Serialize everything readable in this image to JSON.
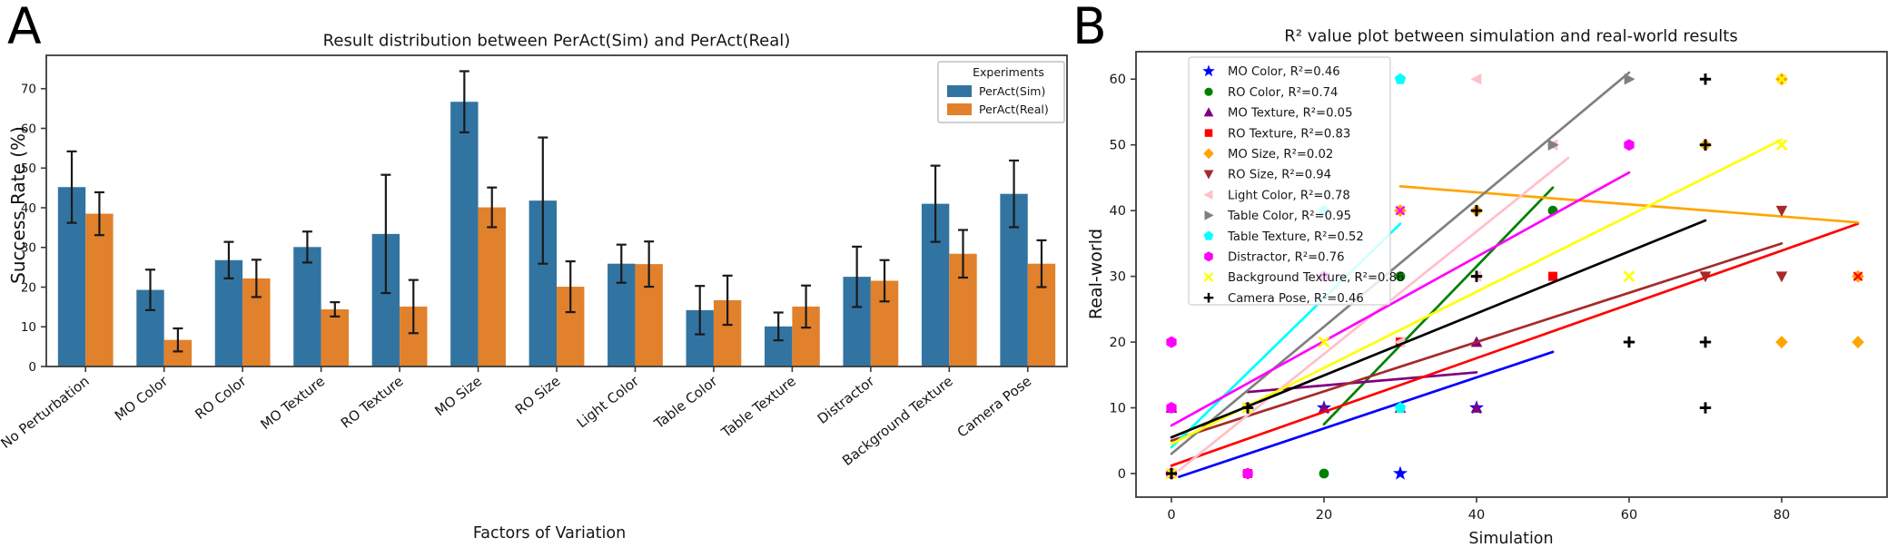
{
  "panel_a": {
    "letter": "A",
    "title": "Result distribution between PerAct(Sim) and PerAct(Real)",
    "xlabel": "Factors of Variation",
    "ylabel": "Success Rate (%)"
  },
  "panel_b": {
    "letter": "B",
    "title": "R² value plot between simulation and real-world results",
    "xlabel": "Simulation",
    "ylabel": "Real-world"
  },
  "chart_data": [
    {
      "type": "bar",
      "panel": "A",
      "title": "Result distribution between PerAct(Sim) and PerAct(Real)",
      "xlabel": "Factors of Variation",
      "ylabel": "Success Rate (%)",
      "ylim": [
        0,
        78.4
      ],
      "yticks": [
        0,
        10,
        20,
        30,
        40,
        50,
        60,
        70
      ],
      "grid": false,
      "legend_title": "Experiments",
      "legend_position": "upper right",
      "error_color": "#1a1a1a",
      "categories": [
        "No Perturbation",
        "MO Color",
        "RO Color",
        "MO Texture",
        "RO Texture",
        "MO Size",
        "RO Size",
        "Light Color",
        "Table Color",
        "Table Texture",
        "Distractor",
        "Background Texture",
        "Camera Pose"
      ],
      "series": [
        {
          "name": "PerAct(Sim)",
          "color": "#3274a1",
          "values": [
            45.2,
            19.3,
            26.8,
            30.1,
            33.4,
            66.7,
            41.8,
            25.9,
            14.2,
            10.1,
            22.6,
            41.0,
            43.5
          ],
          "errors": [
            9.0,
            5.1,
            4.6,
            3.9,
            14.9,
            7.7,
            15.9,
            4.8,
            6.1,
            3.5,
            7.6,
            9.6,
            8.4
          ]
        },
        {
          "name": "PerAct(Real)",
          "color": "#e1812c",
          "values": [
            38.5,
            6.7,
            22.2,
            14.4,
            15.1,
            40.1,
            20.1,
            25.8,
            16.7,
            15.1,
            21.6,
            28.4,
            25.9
          ],
          "errors": [
            5.4,
            2.9,
            4.7,
            1.8,
            6.7,
            5.0,
            6.4,
            5.7,
            6.2,
            5.3,
            5.2,
            6.0,
            5.9
          ]
        }
      ]
    },
    {
      "type": "scatter",
      "panel": "B",
      "title": "R² value plot between simulation and real-world results",
      "xlabel": "Simulation",
      "ylabel": "Real-world",
      "xlim": [
        -4.6,
        93.8
      ],
      "ylim": [
        -3.6,
        64.2
      ],
      "xticks": [
        0,
        20,
        40,
        60,
        80
      ],
      "yticks": [
        0,
        10,
        20,
        30,
        40,
        50,
        60
      ],
      "grid": false,
      "legend_position": "upper left",
      "series": [
        {
          "name": "MO Color",
          "legend_label": "MO Color, R²=0.46",
          "r2": 0.46,
          "color": "#0000ff",
          "marker": "star",
          "points": [
            [
              20,
              10
            ],
            [
              30,
              0
            ],
            [
              40,
              10
            ]
          ],
          "fit_line": [
            [
              1,
              -0.5
            ],
            [
              50,
              18.5
            ]
          ]
        },
        {
          "name": "RO Color",
          "legend_label": "RO Color, R²=0.74",
          "r2": 0.74,
          "color": "#008000",
          "marker": "circle",
          "points": [
            [
              20,
              0
            ],
            [
              30,
              30
            ],
            [
              50,
              40
            ]
          ],
          "fit_line": [
            [
              20,
              7.5
            ],
            [
              50,
              43.5
            ]
          ]
        },
        {
          "name": "MO Texture",
          "legend_label": "MO Texture, R²=0.05",
          "r2": 0.05,
          "color": "#800080",
          "marker": "triangle-up",
          "points": [
            [
              0,
              10
            ],
            [
              20,
              10
            ],
            [
              30,
              10
            ],
            [
              40,
              10
            ],
            [
              40,
              20
            ]
          ],
          "fit_line": [
            [
              10,
              12.4
            ],
            [
              40,
              15.4
            ]
          ]
        },
        {
          "name": "RO Texture",
          "legend_label": "RO Texture, R²=0.83",
          "r2": 0.83,
          "color": "#ff0000",
          "marker": "square",
          "points": [
            [
              0,
              0
            ],
            [
              10,
              0
            ],
            [
              30,
              20
            ],
            [
              50,
              30
            ]
          ],
          "fit_line": [
            [
              0,
              1.2
            ],
            [
              90,
              38
            ]
          ]
        },
        {
          "name": "MO Size",
          "legend_label": "MO Size, R²=0.02",
          "r2": 0.02,
          "color": "#ffa500",
          "marker": "diamond",
          "points": [
            [
              30,
              40
            ],
            [
              40,
              40
            ],
            [
              70,
              50
            ],
            [
              80,
              60
            ],
            [
              80,
              20
            ],
            [
              90,
              20
            ],
            [
              90,
              30
            ]
          ],
          "fit_line": [
            [
              30,
              43.7
            ],
            [
              90,
              38.2
            ]
          ]
        },
        {
          "name": "RO Size",
          "legend_label": "RO Size, R²=0.94",
          "r2": 0.94,
          "color": "#a52a2a",
          "marker": "triangle-down",
          "points": [
            [
              10,
              10
            ],
            [
              70,
              30
            ],
            [
              80,
              30
            ],
            [
              80,
              40
            ]
          ],
          "fit_line": [
            [
              0,
              5
            ],
            [
              80,
              35
            ]
          ]
        },
        {
          "name": "Light Color",
          "legend_label": "Light Color, R²=0.78",
          "r2": 0.78,
          "color": "#ffc0cb",
          "marker": "triangle-left",
          "points": [
            [
              30,
              20
            ],
            [
              40,
              30
            ],
            [
              40,
              60
            ],
            [
              50,
              50
            ]
          ],
          "fit_line": [
            [
              1,
              0.5
            ],
            [
              52,
              48
            ]
          ]
        },
        {
          "name": "Table Color",
          "legend_label": "Table Color, R²=0.95",
          "r2": 0.95,
          "color": "#808080",
          "marker": "triangle-right",
          "points": [
            [
              50,
              50
            ],
            [
              60,
              60
            ]
          ],
          "fit_line": [
            [
              0,
              3
            ],
            [
              60,
              61
            ]
          ]
        },
        {
          "name": "Table Texture",
          "legend_label": "Table Texture, R²=0.52",
          "r2": 0.52,
          "color": "#00ffff",
          "marker": "pentagon",
          "points": [
            [
              20,
              40
            ],
            [
              30,
              10
            ],
            [
              30,
              60
            ]
          ],
          "fit_line": [
            [
              0,
              4
            ],
            [
              30,
              38
            ]
          ]
        },
        {
          "name": "Distractor",
          "legend_label": "Distractor, R²=0.76",
          "r2": 0.76,
          "color": "#ff00ff",
          "marker": "hexagon",
          "points": [
            [
              0,
              0
            ],
            [
              0,
              10
            ],
            [
              0,
              20
            ],
            [
              10,
              0
            ],
            [
              20,
              30
            ],
            [
              60,
              50
            ]
          ],
          "fit_line": [
            [
              0,
              7.3
            ],
            [
              60,
              45.8
            ]
          ]
        },
        {
          "name": "Background Texture",
          "legend_label": "Background Texture, R²=0.86",
          "r2": 0.86,
          "color": "#ffff00",
          "marker": "x",
          "points": [
            [
              0,
              0
            ],
            [
              10,
              10
            ],
            [
              20,
              20
            ],
            [
              60,
              30
            ],
            [
              80,
              50
            ]
          ],
          "fit_line": [
            [
              0,
              4.5
            ],
            [
              80,
              50.8
            ]
          ]
        },
        {
          "name": "Camera Pose",
          "legend_label": "Camera Pose, R²=0.46",
          "r2": 0.46,
          "color": "#000000",
          "marker": "plus",
          "points": [
            [
              0,
              0
            ],
            [
              10,
              10
            ],
            [
              40,
              30
            ],
            [
              40,
              40
            ],
            [
              60,
              20
            ],
            [
              70,
              10
            ],
            [
              70,
              20
            ],
            [
              70,
              50
            ],
            [
              70,
              60
            ]
          ],
          "fit_line": [
            [
              0,
              5.5
            ],
            [
              70,
              38.5
            ]
          ]
        }
      ],
      "extra_overlap_glyphs": [
        {
          "x": 30,
          "y": 40,
          "marker": "x",
          "color": "#ff00ff"
        },
        {
          "x": 80,
          "y": 60,
          "marker": "x",
          "color": "#ffff00"
        },
        {
          "x": 90,
          "y": 30,
          "marker": "x",
          "color": "#ff0000"
        }
      ]
    }
  ]
}
